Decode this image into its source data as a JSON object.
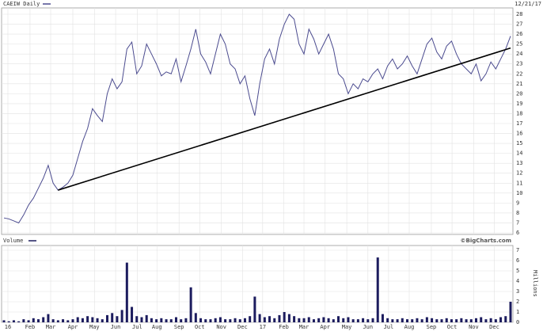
{
  "chart_data": {
    "type": "stock",
    "title": "CAEIW Daily",
    "date": "12/21/17",
    "volume_title": "Volume",
    "source": "©BigCharts.com",
    "volume_axis_label": "Millions",
    "grid": true,
    "xlim": [
      0,
      103
    ],
    "xticks": [
      {
        "value": 0.8,
        "label": "16"
      },
      {
        "value": 5.3,
        "label": "Feb"
      },
      {
        "value": 9.5,
        "label": "Mar"
      },
      {
        "value": 14,
        "label": "Apr"
      },
      {
        "value": 18.4,
        "label": "May"
      },
      {
        "value": 22.7,
        "label": "Jun"
      },
      {
        "value": 27.1,
        "label": "Jul"
      },
      {
        "value": 31.1,
        "label": "Aug"
      },
      {
        "value": 35.6,
        "label": "Sep"
      },
      {
        "value": 39.8,
        "label": "Oct"
      },
      {
        "value": 44.2,
        "label": "Nov"
      },
      {
        "value": 48.5,
        "label": "Dec"
      },
      {
        "value": 52.6,
        "label": "17"
      },
      {
        "value": 56.9,
        "label": "Feb"
      },
      {
        "value": 61,
        "label": "Mar"
      },
      {
        "value": 65.3,
        "label": "Apr"
      },
      {
        "value": 69.7,
        "label": "May"
      },
      {
        "value": 74,
        "label": "Jun"
      },
      {
        "value": 78.2,
        "label": "Jul"
      },
      {
        "value": 82.4,
        "label": "Aug"
      },
      {
        "value": 86.9,
        "label": "Sep"
      },
      {
        "value": 91.1,
        "label": "Oct"
      },
      {
        "value": 95.5,
        "label": "Nov"
      },
      {
        "value": 99.7,
        "label": "Dec"
      }
    ],
    "ylim": [
      6,
      28
    ],
    "yticks": [
      6,
      7,
      8,
      9,
      10,
      11,
      12,
      13,
      14,
      15,
      16,
      17,
      18,
      19,
      20,
      21,
      22,
      23,
      24,
      25,
      26,
      27,
      28
    ],
    "y2lim": [
      0,
      7
    ],
    "y2ticks": [
      0,
      1,
      2,
      3,
      4,
      5,
      6,
      7
    ],
    "price_color": "#4b4b8f",
    "volume_color": "#1c1c5e",
    "trend_color": "#000000",
    "price": [
      7.5,
      7.4,
      7.2,
      7.0,
      7.8,
      8.8,
      9.5,
      10.5,
      11.5,
      12.8,
      11.0,
      10.3,
      10.6,
      11.0,
      11.8,
      13.5,
      15.2,
      16.5,
      18.5,
      17.8,
      17.2,
      20.0,
      21.5,
      20.5,
      21.2,
      24.5,
      25.2,
      22.0,
      22.8,
      25.0,
      24.0,
      23.0,
      21.8,
      22.2,
      22.0,
      23.5,
      21.2,
      22.8,
      24.5,
      26.5,
      24.0,
      23.2,
      22.0,
      24.0,
      26.0,
      25.0,
      23.0,
      22.5,
      21.0,
      21.8,
      19.5,
      17.8,
      21.0,
      23.5,
      24.5,
      23.0,
      25.5,
      27.0,
      28.0,
      27.5,
      25.0,
      24.0,
      26.5,
      25.5,
      24.0,
      25.0,
      26.0,
      24.5,
      22.0,
      21.5,
      20.0,
      21.0,
      20.5,
      21.5,
      21.2,
      22.0,
      22.5,
      21.5,
      22.8,
      23.5,
      22.5,
      23.0,
      23.8,
      22.8,
      22.0,
      23.5,
      25.0,
      25.6,
      24.2,
      23.5,
      24.8,
      25.3,
      24.0,
      23.0,
      22.5,
      22.0,
      23.0,
      21.3,
      22.0,
      23.2,
      22.5,
      23.5,
      24.5,
      25.8
    ],
    "volume": [
      0.2,
      0.1,
      0.2,
      0.1,
      0.3,
      0.2,
      0.4,
      0.3,
      0.5,
      0.8,
      0.3,
      0.2,
      0.3,
      0.2,
      0.3,
      0.5,
      0.4,
      0.6,
      0.5,
      0.4,
      0.3,
      0.7,
      0.9,
      0.6,
      1.2,
      5.8,
      1.5,
      0.6,
      0.5,
      0.7,
      0.4,
      0.3,
      0.4,
      0.3,
      0.3,
      0.5,
      0.3,
      0.4,
      3.4,
      0.9,
      0.4,
      0.3,
      0.3,
      0.4,
      0.5,
      0.3,
      0.3,
      0.4,
      0.3,
      0.4,
      0.6,
      2.5,
      0.8,
      0.5,
      0.6,
      0.4,
      0.7,
      1.0,
      0.8,
      0.6,
      0.4,
      0.4,
      0.5,
      0.3,
      0.4,
      0.5,
      0.4,
      0.3,
      0.6,
      0.4,
      0.5,
      0.3,
      0.3,
      0.4,
      0.3,
      0.4,
      6.3,
      0.8,
      0.4,
      0.3,
      0.3,
      0.4,
      0.3,
      0.3,
      0.4,
      0.3,
      0.5,
      0.4,
      0.3,
      0.3,
      0.4,
      0.3,
      0.3,
      0.4,
      0.3,
      0.3,
      0.4,
      0.5,
      0.3,
      0.4,
      0.3,
      0.5,
      0.6,
      2.0
    ],
    "trendline": {
      "x": [
        11,
        103
      ],
      "values": [
        10.3,
        24.6
      ]
    }
  }
}
